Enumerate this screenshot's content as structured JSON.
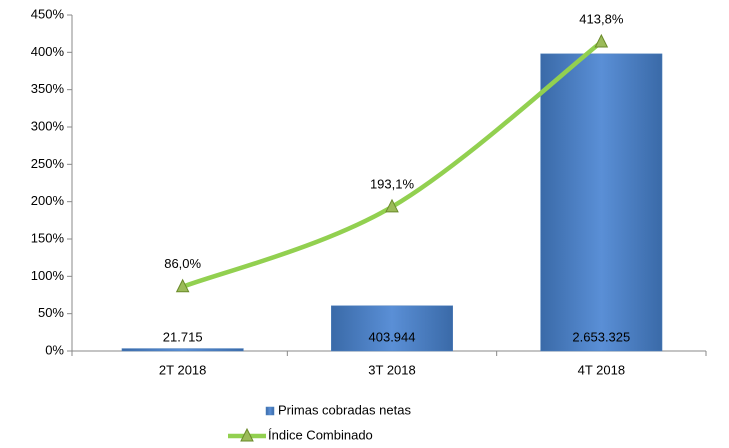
{
  "chart_data": {
    "type": "bar",
    "categories": [
      "2T 2018",
      "3T 2018",
      "4T 2018"
    ],
    "series": [
      {
        "name": "Primas cobradas netas",
        "type": "bar",
        "color": "#4f81bd",
        "axis": "y2",
        "values": [
          21715,
          403944,
          2653325
        ],
        "value_labels": [
          "21.715",
          "403.944",
          "2.653.325"
        ]
      },
      {
        "name": "Índice Combinado",
        "type": "line",
        "color": "#92d050",
        "values": [
          86.0,
          193.1,
          413.8
        ],
        "value_labels": [
          "86,0%",
          "193,1%",
          "413,8%"
        ]
      }
    ],
    "ylim": [
      0,
      450
    ],
    "yticks": [
      {
        "value": 0,
        "label": "0%"
      },
      {
        "value": 50,
        "label": "50%"
      },
      {
        "value": 100,
        "label": "100%"
      },
      {
        "value": 150,
        "label": "150%"
      },
      {
        "value": 200,
        "label": "200%"
      },
      {
        "value": 250,
        "label": "250%"
      },
      {
        "value": 300,
        "label": "300%"
      },
      {
        "value": 350,
        "label": "350%"
      },
      {
        "value": 400,
        "label": "400%"
      },
      {
        "value": 450,
        "label": "450%"
      }
    ],
    "y2lim": [
      0,
      3000000
    ],
    "legend": "bottom"
  }
}
